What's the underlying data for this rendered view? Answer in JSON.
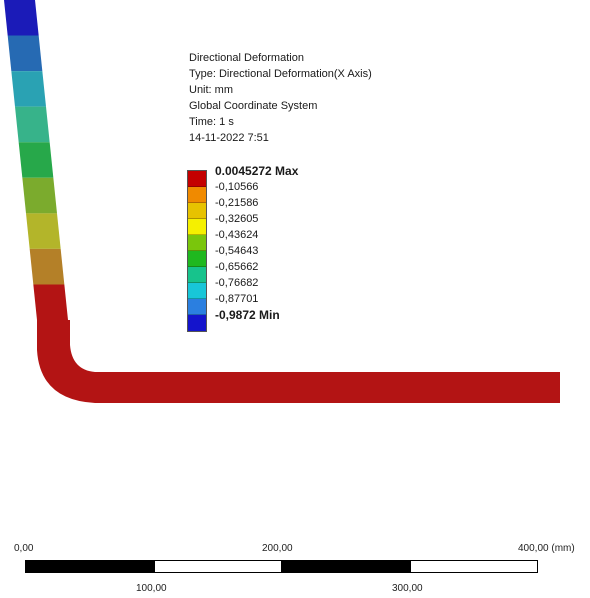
{
  "info": {
    "title": "Directional Deformation",
    "type": "Type: Directional Deformation(X Axis)",
    "unit": "Unit: mm",
    "coord": "Global Coordinate System",
    "time": "Time: 1 s",
    "date": "14-11-2022 7:51"
  },
  "legend": {
    "bands": [
      {
        "value": "0.0045272 Max",
        "color": "#c40000",
        "bold": true
      },
      {
        "value": "-0,10566",
        "color": "#f08a00",
        "bold": false
      },
      {
        "value": "-0,21586",
        "color": "#e7c200",
        "bold": false
      },
      {
        "value": "-0,32605",
        "color": "#f5f000",
        "bold": false
      },
      {
        "value": "-0,43624",
        "color": "#7ac60c",
        "bold": false
      },
      {
        "value": "-0,54643",
        "color": "#1fb81f",
        "bold": false
      },
      {
        "value": "-0,65662",
        "color": "#17c38c",
        "bold": false
      },
      {
        "value": "-0,76682",
        "color": "#18c6d8",
        "bold": false
      },
      {
        "value": "-0,87701",
        "color": "#2b7fe0",
        "bold": false
      },
      {
        "value": "-0,9872 Min",
        "color": "#1414cc",
        "bold": true
      }
    ],
    "colors": [
      "#c40000",
      "#f08a00",
      "#e7c200",
      "#f5f000",
      "#7ac60c",
      "#1fb81f",
      "#17c38c",
      "#18c6d8",
      "#2b7fe0",
      "#1414cc"
    ]
  },
  "model": {
    "segment_colors": [
      "#1b1bb8",
      "#266ab3",
      "#2aa2b3",
      "#37b38a",
      "#27a84a",
      "#7bab2d",
      "#b3b52a",
      "#b48028",
      "#b31414"
    ],
    "horizontal_color": "#b31414"
  },
  "scale": {
    "label_0": "0,00",
    "label_200": "200,00",
    "label_400": "400,00 (mm)",
    "label_100": "100,00",
    "label_300": "300,00"
  }
}
